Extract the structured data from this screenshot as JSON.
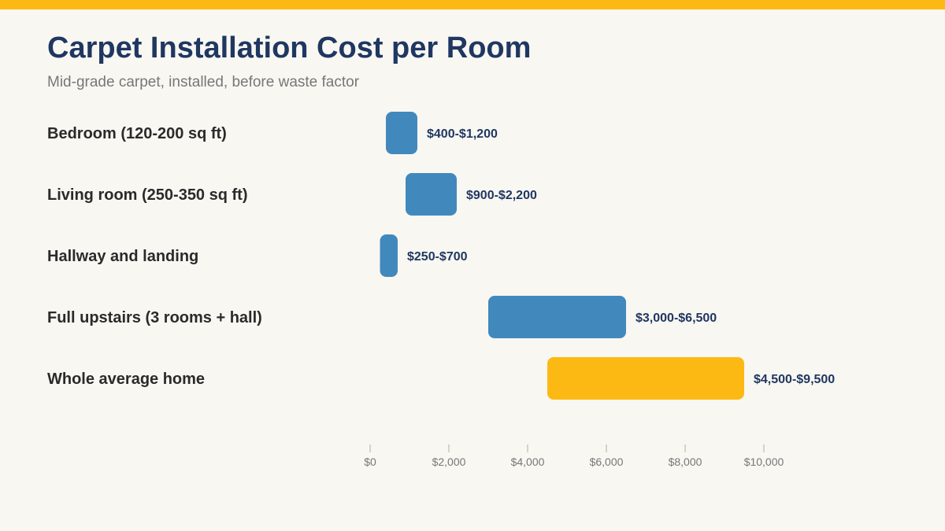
{
  "chart_data": {
    "type": "bar",
    "orientation": "horizontal-range",
    "title": "Carpet Installation Cost per Room",
    "subtitle": "Mid-grade carpet, installed, before waste factor",
    "categories": [
      "Bedroom (120-200 sq ft)",
      "Living room (250-350 sq ft)",
      "Hallway and landing",
      "Full upstairs (3 rooms + hall)",
      "Whole average home"
    ],
    "ranges": [
      {
        "low": 400,
        "high": 1200,
        "label": "$400-$1,200",
        "color": "#4189bd"
      },
      {
        "low": 900,
        "high": 2200,
        "label": "$900-$2,200",
        "color": "#4189bd"
      },
      {
        "low": 250,
        "high": 700,
        "label": "$250-$700",
        "color": "#4189bd"
      },
      {
        "low": 3000,
        "high": 6500,
        "label": "$3,000-$6,500",
        "color": "#4189bd"
      },
      {
        "low": 4500,
        "high": 9500,
        "label": "$4,500-$9,500",
        "color": "#fdb913"
      }
    ],
    "xlim": [
      0,
      10000
    ],
    "ticks": [
      0,
      2000,
      4000,
      6000,
      8000,
      10000
    ],
    "tick_labels": [
      "$0",
      "$2,000",
      "$4,000",
      "$6,000",
      "$8,000",
      "$10,000"
    ],
    "grid": false,
    "legend": "none"
  },
  "colors": {
    "accent": "#fdb913",
    "bar": "#4189bd",
    "title": "#1f3761",
    "background": "#f9f7f2"
  }
}
